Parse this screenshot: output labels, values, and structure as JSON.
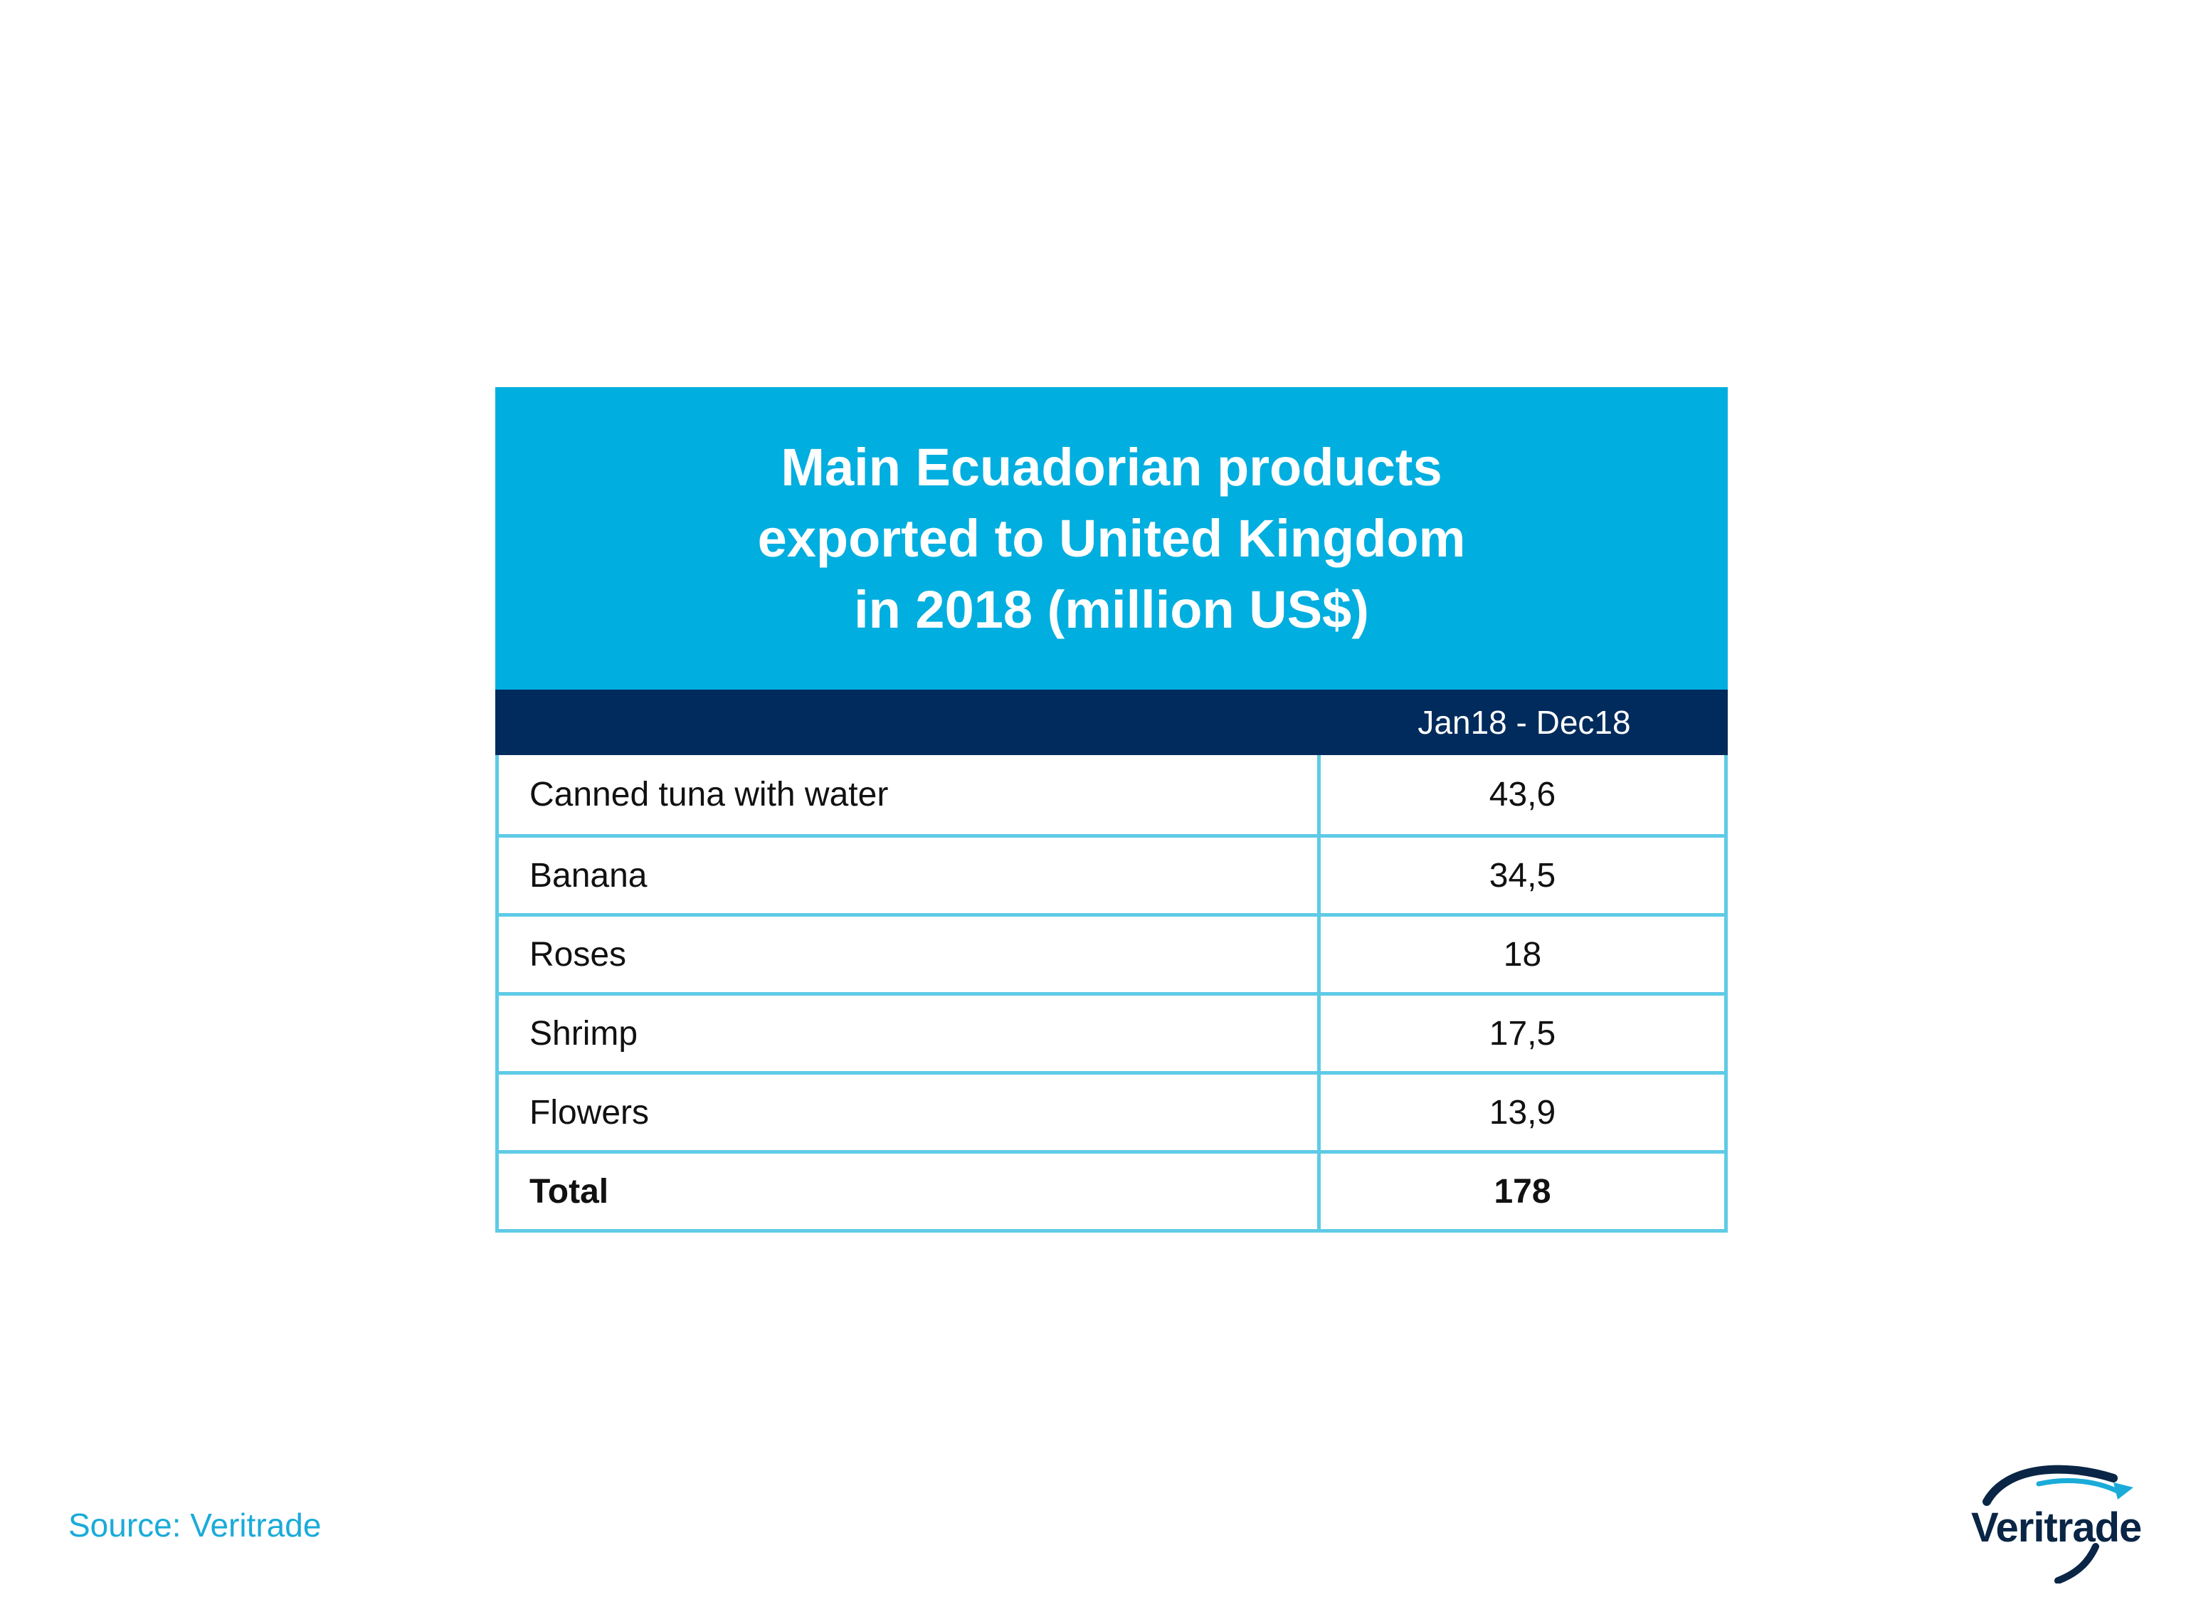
{
  "chart_data": {
    "type": "table",
    "title": "Main Ecuadorian products\nexported to United Kingdom\nin 2018 (million US$)",
    "column_header": "Jan18 - Dec18",
    "rows": [
      {
        "label": "Canned tuna with water",
        "value": "43,6"
      },
      {
        "label": "Banana",
        "value": "34,5"
      },
      {
        "label": "Roses",
        "value": "18"
      },
      {
        "label": "Shrimp",
        "value": "17,5"
      },
      {
        "label": "Flowers",
        "value": "13,9"
      }
    ],
    "total": {
      "label": "Total",
      "value": "178"
    }
  },
  "source": "Source: Veritrade",
  "logo": {
    "text": "Veritrade"
  },
  "colors": {
    "title_band": "#00AEDF",
    "header_band": "#002B5C",
    "grid_lines": "#5ECBE6",
    "source_text": "#1AABD9",
    "logo_dark": "#0A2545",
    "logo_light": "#1AABD9"
  }
}
